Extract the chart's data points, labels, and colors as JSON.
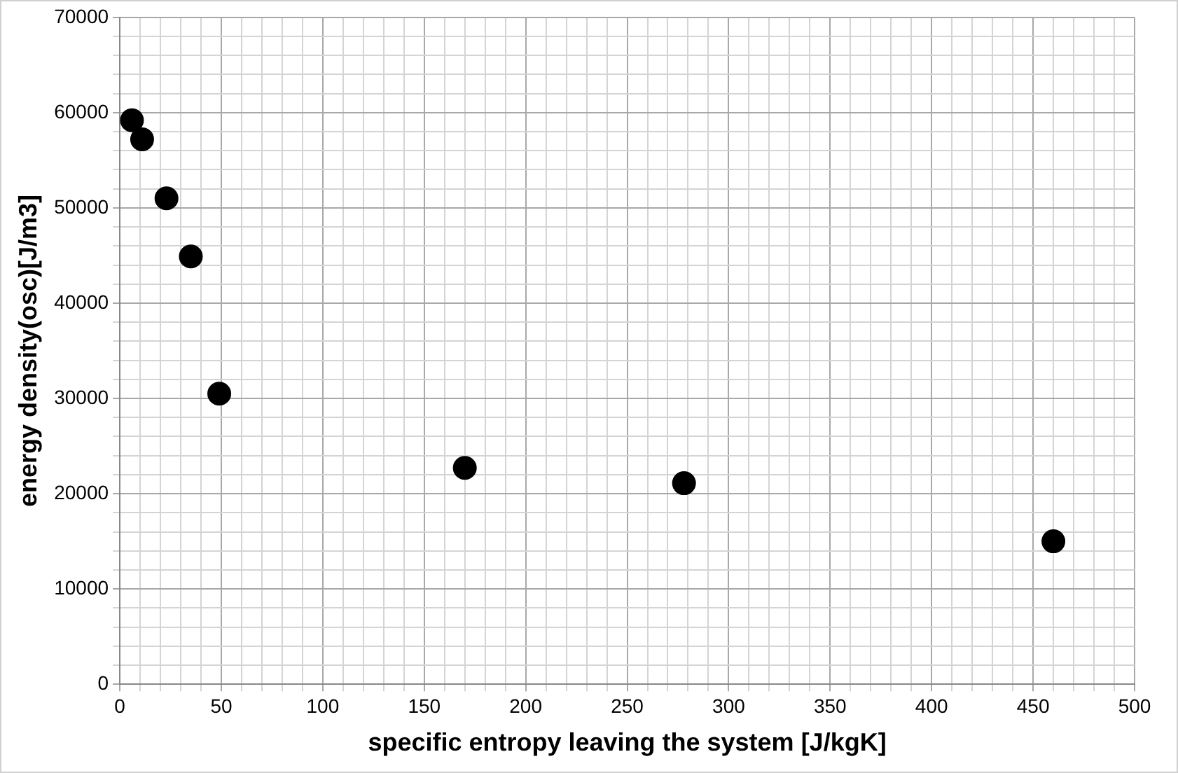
{
  "chart_data": {
    "type": "scatter",
    "xlabel": "specific entropy leaving the system [J/kgK]",
    "ylabel": "energy density(osc)[J/m3]",
    "x": [
      6,
      11,
      23,
      35,
      49,
      170,
      278,
      460
    ],
    "series": [
      {
        "color": "#000000",
        "values": [
          59200,
          57200,
          51000,
          44900,
          30500,
          22700,
          21100,
          15000
        ]
      }
    ],
    "marker": "circle",
    "grid": true,
    "legend": false,
    "xlim": [
      0,
      500
    ],
    "ylim": [
      0,
      70000
    ],
    "xticks": [
      0,
      {
        "value": 10,
        "label": null
      },
      {
        "value": 20,
        "label": null
      },
      {
        "value": 30,
        "label": null
      },
      {
        "value": 40,
        "label": null
      },
      50,
      {
        "value": 60,
        "label": null
      },
      {
        "value": 70,
        "label": null
      },
      {
        "value": 80,
        "label": null
      },
      {
        "value": 90,
        "label": null
      },
      100,
      {
        "value": 110,
        "label": null
      },
      {
        "value": 120,
        "label": null
      },
      {
        "value": 130,
        "label": null
      },
      {
        "value": 140,
        "label": null
      },
      150,
      {
        "value": 160,
        "label": null
      },
      {
        "value": 170,
        "label": null
      },
      {
        "value": 180,
        "label": null
      },
      {
        "value": 190,
        "label": null
      },
      200,
      {
        "value": 210,
        "label": null
      },
      {
        "value": 220,
        "label": null
      },
      {
        "value": 230,
        "label": null
      },
      {
        "value": 240,
        "label": null
      },
      250,
      {
        "value": 260,
        "label": null
      },
      {
        "value": 270,
        "label": null
      },
      {
        "value": 280,
        "label": null
      },
      {
        "value": 290,
        "label": null
      },
      300,
      {
        "value": 310,
        "label": null
      },
      {
        "value": 320,
        "label": null
      },
      {
        "value": 330,
        "label": null
      },
      {
        "value": 340,
        "label": null
      },
      350,
      {
        "value": 360,
        "label": null
      },
      {
        "value": 370,
        "label": null
      },
      {
        "value": 380,
        "label": null
      },
      {
        "value": 390,
        "label": null
      },
      400,
      {
        "value": 410,
        "label": null
      },
      {
        "value": 420,
        "label": null
      },
      {
        "value": 430,
        "label": null
      },
      {
        "value": 440,
        "label": null
      },
      450,
      {
        "value": 460,
        "label": null
      },
      {
        "value": 470,
        "label": null
      },
      {
        "value": 480,
        "label": null
      },
      {
        "value": 490,
        "label": null
      },
      500
    ],
    "yticks": [
      0,
      {
        "value": 2000,
        "label": null
      },
      {
        "value": 4000,
        "label": null
      },
      {
        "value": 6000,
        "label": null
      },
      {
        "value": 8000,
        "label": null
      },
      10000,
      {
        "value": 12000,
        "label": null
      },
      {
        "value": 14000,
        "label": null
      },
      {
        "value": 16000,
        "label": null
      },
      {
        "value": 18000,
        "label": null
      },
      20000,
      {
        "value": 22000,
        "label": null
      },
      {
        "value": 24000,
        "label": null
      },
      {
        "value": 26000,
        "label": null
      },
      {
        "value": 28000,
        "label": null
      },
      30000,
      {
        "value": 32000,
        "label": null
      },
      {
        "value": 34000,
        "label": null
      },
      {
        "value": 36000,
        "label": null
      },
      {
        "value": 38000,
        "label": null
      },
      40000,
      {
        "value": 42000,
        "label": null
      },
      {
        "value": 44000,
        "label": null
      },
      {
        "value": 46000,
        "label": null
      },
      {
        "value": 48000,
        "label": null
      },
      50000,
      {
        "value": 52000,
        "label": null
      },
      {
        "value": 54000,
        "label": null
      },
      {
        "value": 56000,
        "label": null
      },
      {
        "value": 58000,
        "label": null
      },
      60000,
      {
        "value": 62000,
        "label": null
      },
      {
        "value": 64000,
        "label": null
      },
      {
        "value": 66000,
        "label": null
      },
      {
        "value": 68000,
        "label": null
      },
      70000
    ]
  }
}
